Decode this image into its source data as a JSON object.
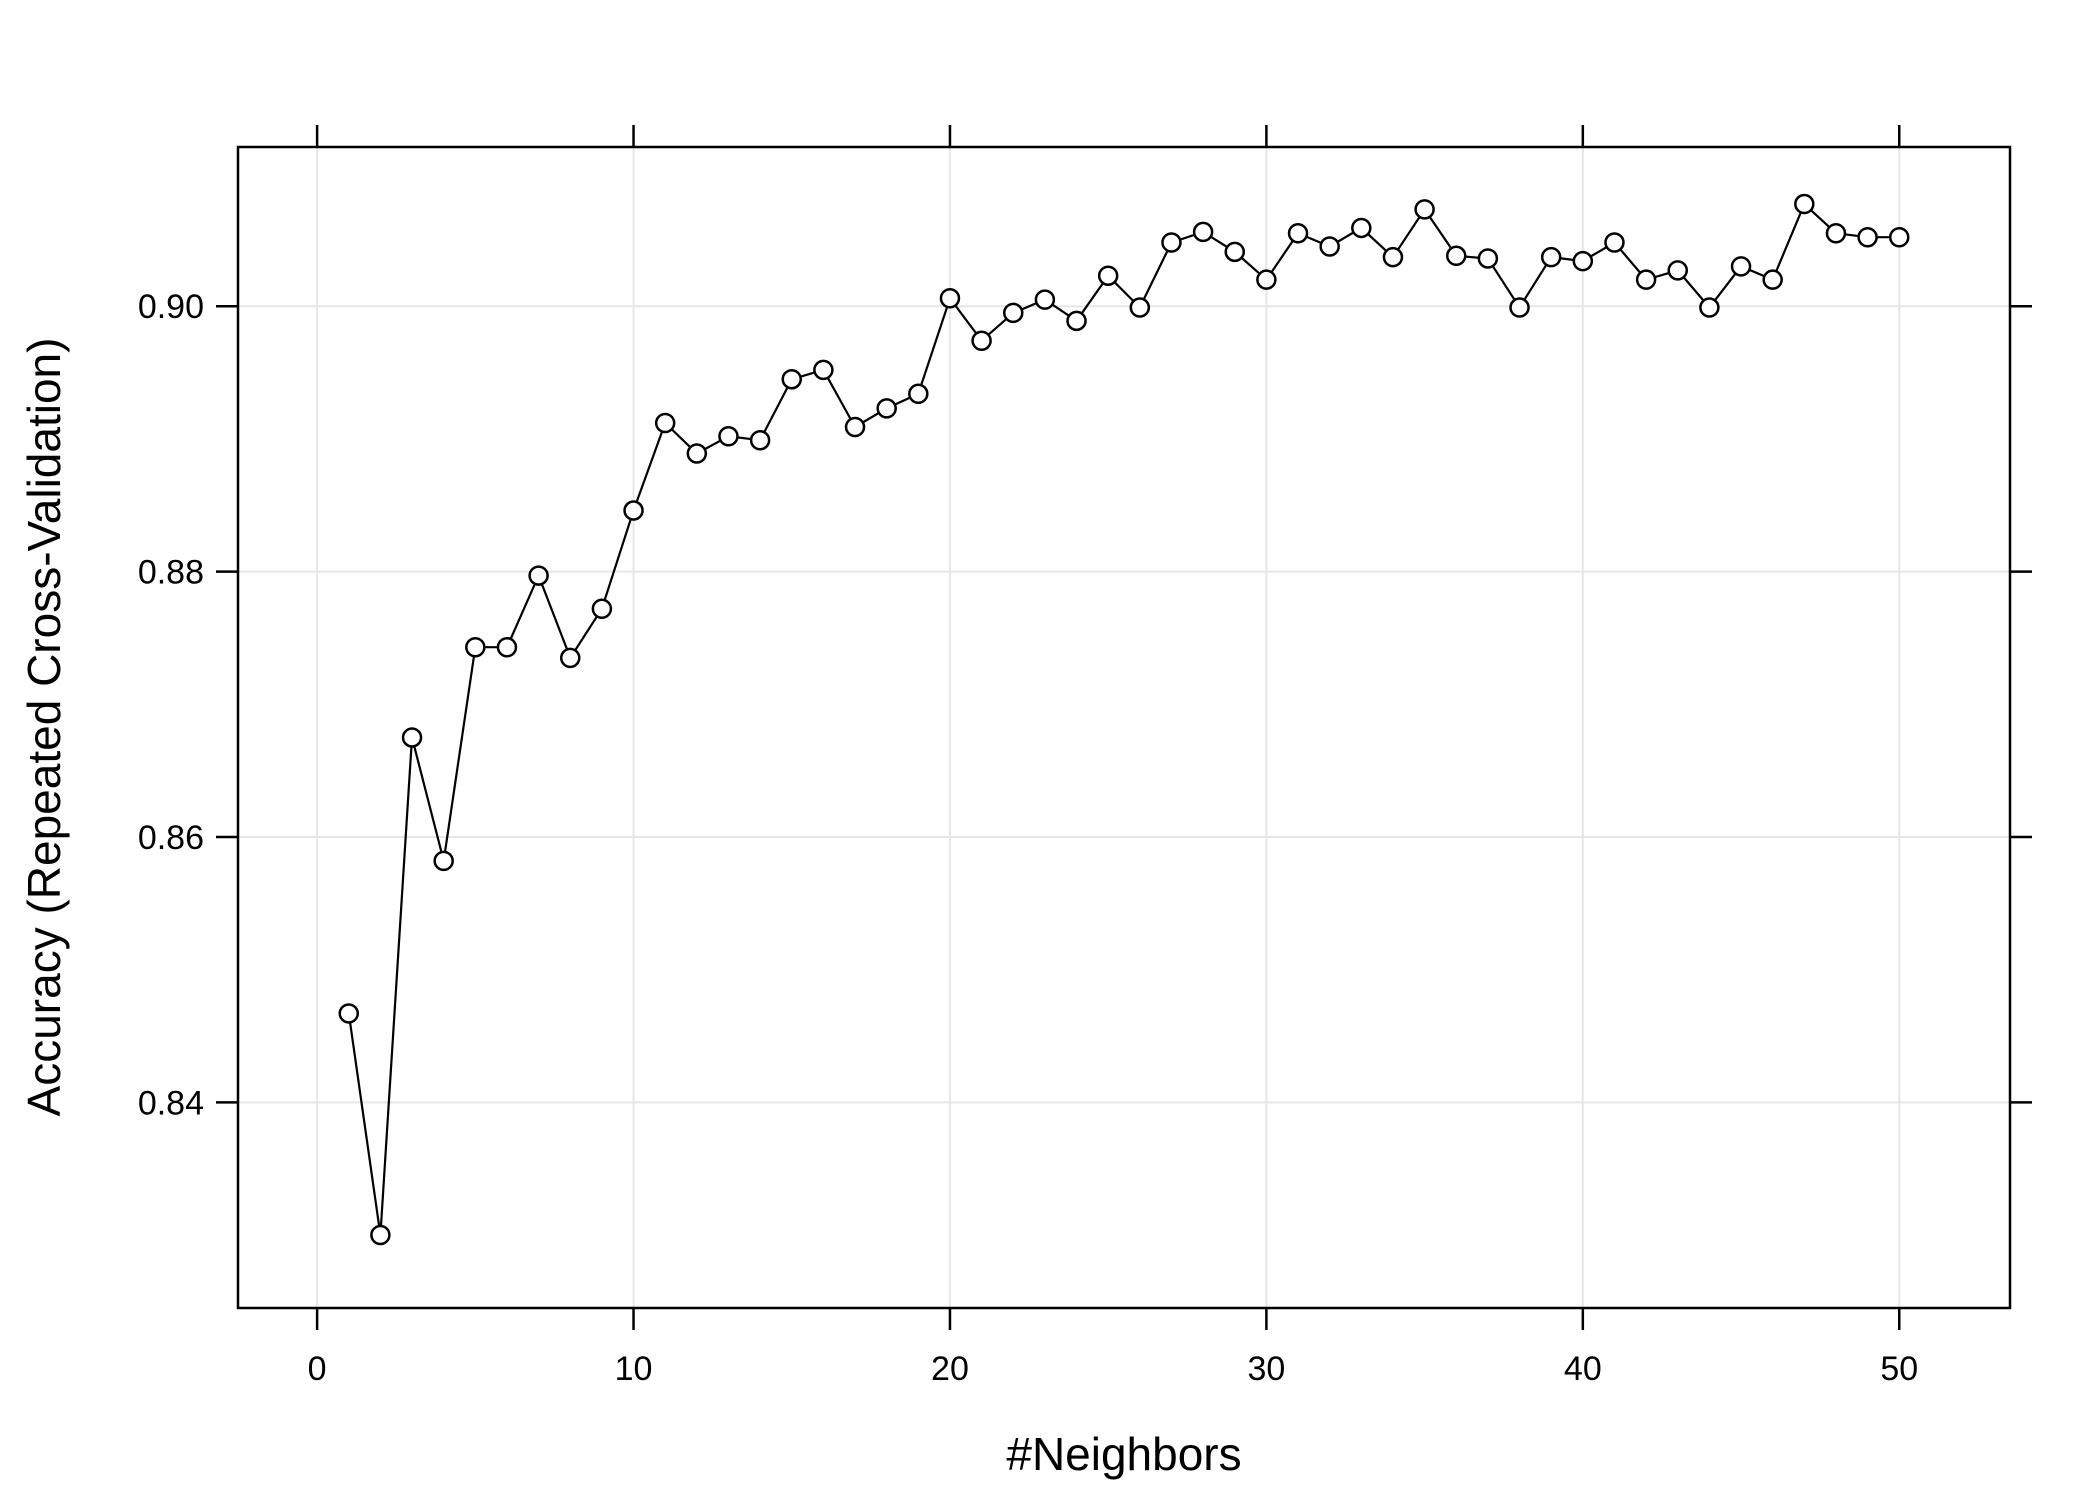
{
  "chart_data": {
    "type": "line",
    "title": "",
    "xlabel": "#Neighbors",
    "ylabel": "Accuracy (Repeated Cross-Validation)",
    "xlim": [
      -2.5,
      53.5
    ],
    "ylim": [
      0.8245,
      0.912
    ],
    "grid": true,
    "xticks": [
      0,
      10,
      20,
      30,
      40,
      50
    ],
    "yticks": [
      0.84,
      0.86,
      0.88,
      0.9
    ],
    "xtick_labels": [
      "0",
      "10",
      "20",
      "30",
      "40",
      "50"
    ],
    "ytick_labels": [
      "0.84",
      "0.86",
      "0.88",
      "0.90"
    ],
    "series": [
      {
        "marker": "open-circle",
        "x": [
          1,
          2,
          3,
          4,
          5,
          6,
          7,
          8,
          9,
          10,
          11,
          12,
          13,
          14,
          15,
          16,
          17,
          18,
          19,
          20,
          21,
          22,
          23,
          24,
          25,
          26,
          27,
          28,
          29,
          30,
          31,
          32,
          33,
          34,
          35,
          36,
          37,
          38,
          39,
          40,
          41,
          42,
          43,
          44,
          45,
          46,
          47,
          48,
          49,
          50
        ],
        "y": [
          0.8467,
          0.83,
          0.8675,
          0.8582,
          0.8743,
          0.8743,
          0.8797,
          0.8735,
          0.8772,
          0.8846,
          0.8912,
          0.8889,
          0.8902,
          0.8899,
          0.8945,
          0.8952,
          0.8909,
          0.8923,
          0.8934,
          0.9006,
          0.8974,
          0.8995,
          0.9005,
          0.8989,
          0.9023,
          0.8999,
          0.9048,
          0.9056,
          0.9041,
          0.902,
          0.9055,
          0.9045,
          0.9059,
          0.9037,
          0.9073,
          0.9038,
          0.9036,
          0.8999,
          0.9037,
          0.9034,
          0.9048,
          0.902,
          0.9027,
          0.8999,
          0.903,
          0.902,
          0.9077,
          0.9055,
          0.9052,
          0.9052
        ]
      }
    ]
  }
}
